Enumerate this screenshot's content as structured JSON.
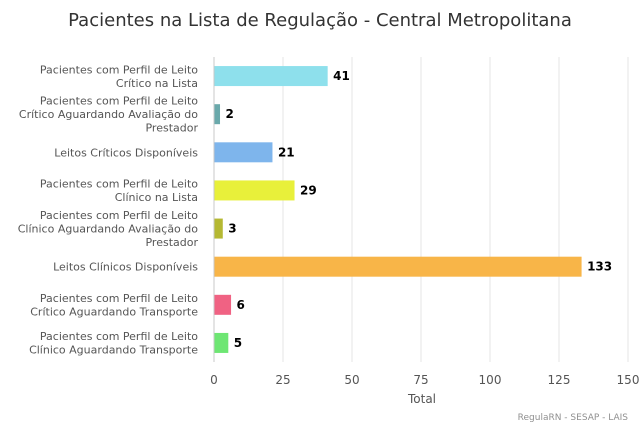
{
  "chart_data": {
    "type": "bar",
    "orientation": "horizontal",
    "title": "Pacientes na Lista de Regulação - Central Metropolitana",
    "xlabel": "Total",
    "xlim": [
      0,
      150
    ],
    "ticks": [
      0,
      25,
      50,
      75,
      100,
      125,
      150
    ],
    "grid": true,
    "legend": "none",
    "categories": [
      [
        "Pacientes com Perfil de Leito",
        "Crítico na Lista"
      ],
      [
        "Pacientes com Perfil de Leito",
        "Crítico Aguardando Avaliação do",
        "Prestador"
      ],
      [
        "Leitos Críticos Disponíveis"
      ],
      [
        "Pacientes com Perfil de Leito",
        "Clínico na Lista"
      ],
      [
        "Pacientes com Perfil de Leito",
        "Clínico Aguardando Avaliação do",
        "Prestador"
      ],
      [
        "Leitos Clínicos Disponíveis"
      ],
      [
        "Pacientes com Perfil de Leito",
        "Crítico Aguardando Transporte"
      ],
      [
        "Pacientes com Perfil de Leito",
        "Clínico Aguardando Transporte"
      ]
    ],
    "values": [
      41,
      2,
      21,
      29,
      3,
      133,
      6,
      5
    ],
    "colors": [
      "#8ee0ec",
      "#6aa9ab",
      "#7eb5ec",
      "#e8f03a",
      "#b5b832",
      "#f8b548",
      "#f06283",
      "#6ee673"
    ],
    "credit": "RegulaRN - SESAP - LAIS"
  }
}
